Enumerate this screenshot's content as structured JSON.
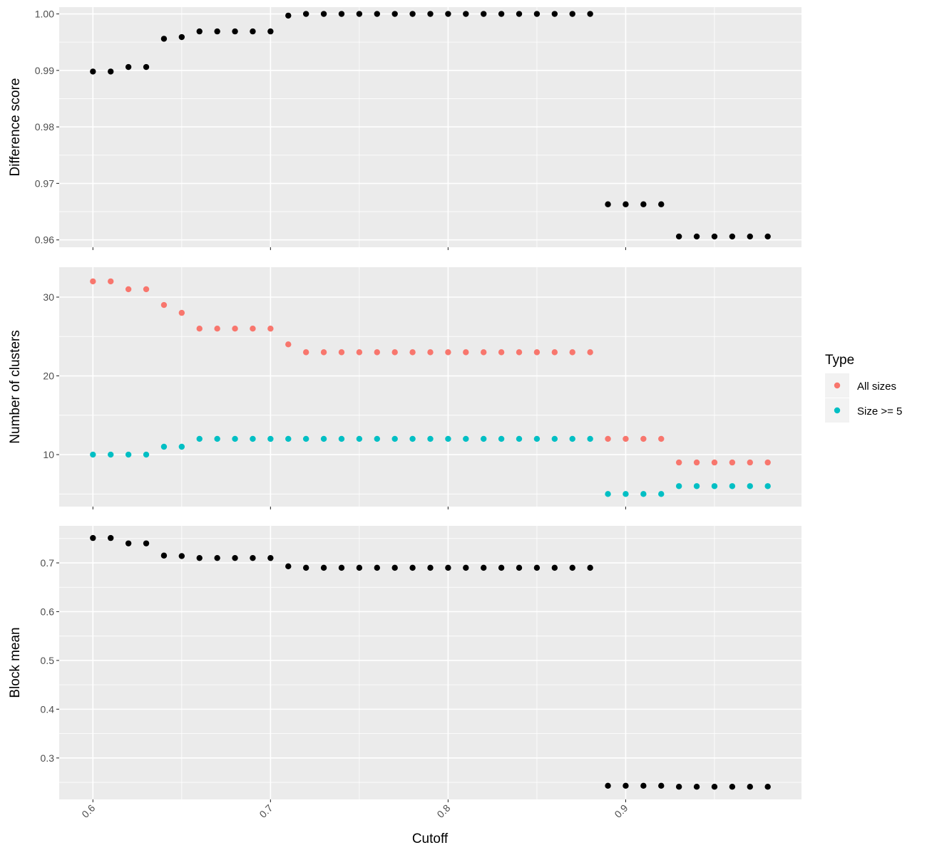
{
  "chart_data": {
    "type": "scatter",
    "xlabel": "Cutoff",
    "x_ticks": [
      "0.6",
      "0.7",
      "0.8",
      "0.9"
    ],
    "x": [
      0.6,
      0.61,
      0.62,
      0.63,
      0.64,
      0.65,
      0.66,
      0.67,
      0.68,
      0.69,
      0.7,
      0.71,
      0.72,
      0.73,
      0.74,
      0.75,
      0.76,
      0.77,
      0.78,
      0.79,
      0.8,
      0.81,
      0.82,
      0.83,
      0.84,
      0.85,
      0.86,
      0.87,
      0.88,
      0.89,
      0.9,
      0.91,
      0.92,
      0.93,
      0.94,
      0.95,
      0.96,
      0.97,
      0.98
    ],
    "panels": [
      {
        "ylabel": "Difference score",
        "y_ticks": [
          "0.96",
          "0.97",
          "0.98",
          "0.99",
          "1.00"
        ],
        "ylim": [
          0.9587,
          1.0012
        ],
        "series": [
          {
            "values": [
              0.9898,
              0.9898,
              0.9906,
              0.9906,
              0.9956,
              0.9959,
              0.9969,
              0.9969,
              0.9969,
              0.9969,
              0.9969,
              0.9997,
              1.0,
              1.0,
              1.0,
              1.0,
              1.0,
              1.0,
              1.0,
              1.0,
              1.0,
              1.0,
              1.0,
              1.0,
              1.0,
              1.0,
              1.0,
              1.0,
              1.0,
              0.9663,
              0.9663,
              0.9663,
              0.9663,
              0.9606,
              0.9606,
              0.9606,
              0.9606,
              0.9606,
              0.9606
            ],
            "color": "#000000"
          }
        ]
      },
      {
        "ylabel": "Number of clusters",
        "y_ticks": [
          "10",
          "20",
          "30"
        ],
        "ylim": [
          3.4,
          33.8
        ],
        "series": [
          {
            "name": "All sizes",
            "color": "#F8766D",
            "values": [
              32,
              32,
              31,
              31,
              29,
              28,
              26,
              26,
              26,
              26,
              26,
              24,
              23,
              23,
              23,
              23,
              23,
              23,
              23,
              23,
              23,
              23,
              23,
              23,
              23,
              23,
              23,
              23,
              23,
              12,
              12,
              12,
              12,
              9,
              9,
              9,
              9,
              9,
              9
            ]
          },
          {
            "name": "Size >= 5",
            "color": "#00BFC4",
            "values": [
              10,
              10,
              10,
              10,
              11,
              11,
              12,
              12,
              12,
              12,
              12,
              12,
              12,
              12,
              12,
              12,
              12,
              12,
              12,
              12,
              12,
              12,
              12,
              12,
              12,
              12,
              12,
              12,
              12,
              5,
              5,
              5,
              5,
              6,
              6,
              6,
              6,
              6,
              6
            ]
          }
        ]
      },
      {
        "ylabel": "Block mean",
        "y_ticks": [
          "0.3",
          "0.4",
          "0.5",
          "0.6",
          "0.7"
        ],
        "ylim": [
          0.215,
          0.776
        ],
        "series": [
          {
            "values": [
              0.751,
              0.751,
              0.74,
              0.74,
              0.715,
              0.714,
              0.71,
              0.71,
              0.71,
              0.71,
              0.71,
              0.693,
              0.69,
              0.69,
              0.69,
              0.69,
              0.69,
              0.69,
              0.69,
              0.69,
              0.69,
              0.69,
              0.69,
              0.69,
              0.69,
              0.69,
              0.69,
              0.69,
              0.69,
              0.243,
              0.243,
              0.243,
              0.243,
              0.241,
              0.241,
              0.241,
              0.241,
              0.241,
              0.241
            ],
            "color": "#000000"
          }
        ]
      }
    ],
    "legend": {
      "title": "Type",
      "position": "right",
      "items": [
        {
          "label": "All sizes",
          "color": "#F8766D"
        },
        {
          "label": "Size >= 5",
          "color": "#00BFC4"
        }
      ]
    },
    "grid": true,
    "background": "#EBEBEB"
  }
}
